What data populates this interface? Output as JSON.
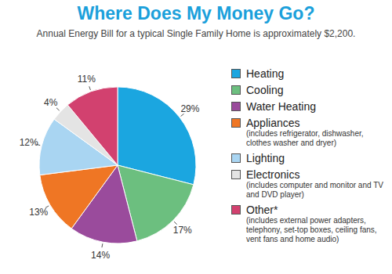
{
  "chart_data": {
    "type": "pie",
    "title": "Where Does My Money Go?",
    "subtitle": "Annual Energy Bill for a typical Single Family Home is approximately $2,200.",
    "categories": [
      "Heating",
      "Cooling",
      "Water Heating",
      "Appliances",
      "Lighting",
      "Electronics",
      "Other*"
    ],
    "notes": [
      null,
      null,
      null,
      "(includes refrigerator, dishwasher, clothes washer and dryer)",
      null,
      "(includes computer and monitor and TV and DVD player)",
      "(includes external power adapters, telephony, set-top boxes, ceiling fans, vent fans and home audio)"
    ],
    "values": [
      29,
      17,
      14,
      13,
      12,
      4,
      11
    ],
    "value_labels": [
      "29%",
      "17%",
      "14%",
      "13%",
      "12%",
      "4%",
      "11%"
    ],
    "colors": [
      "#1ba6e0",
      "#6cbf7f",
      "#9a4b9c",
      "#ef7624",
      "#a9d5f2",
      "#e4e4e4",
      "#d2416f"
    ],
    "data_labels": true
  }
}
